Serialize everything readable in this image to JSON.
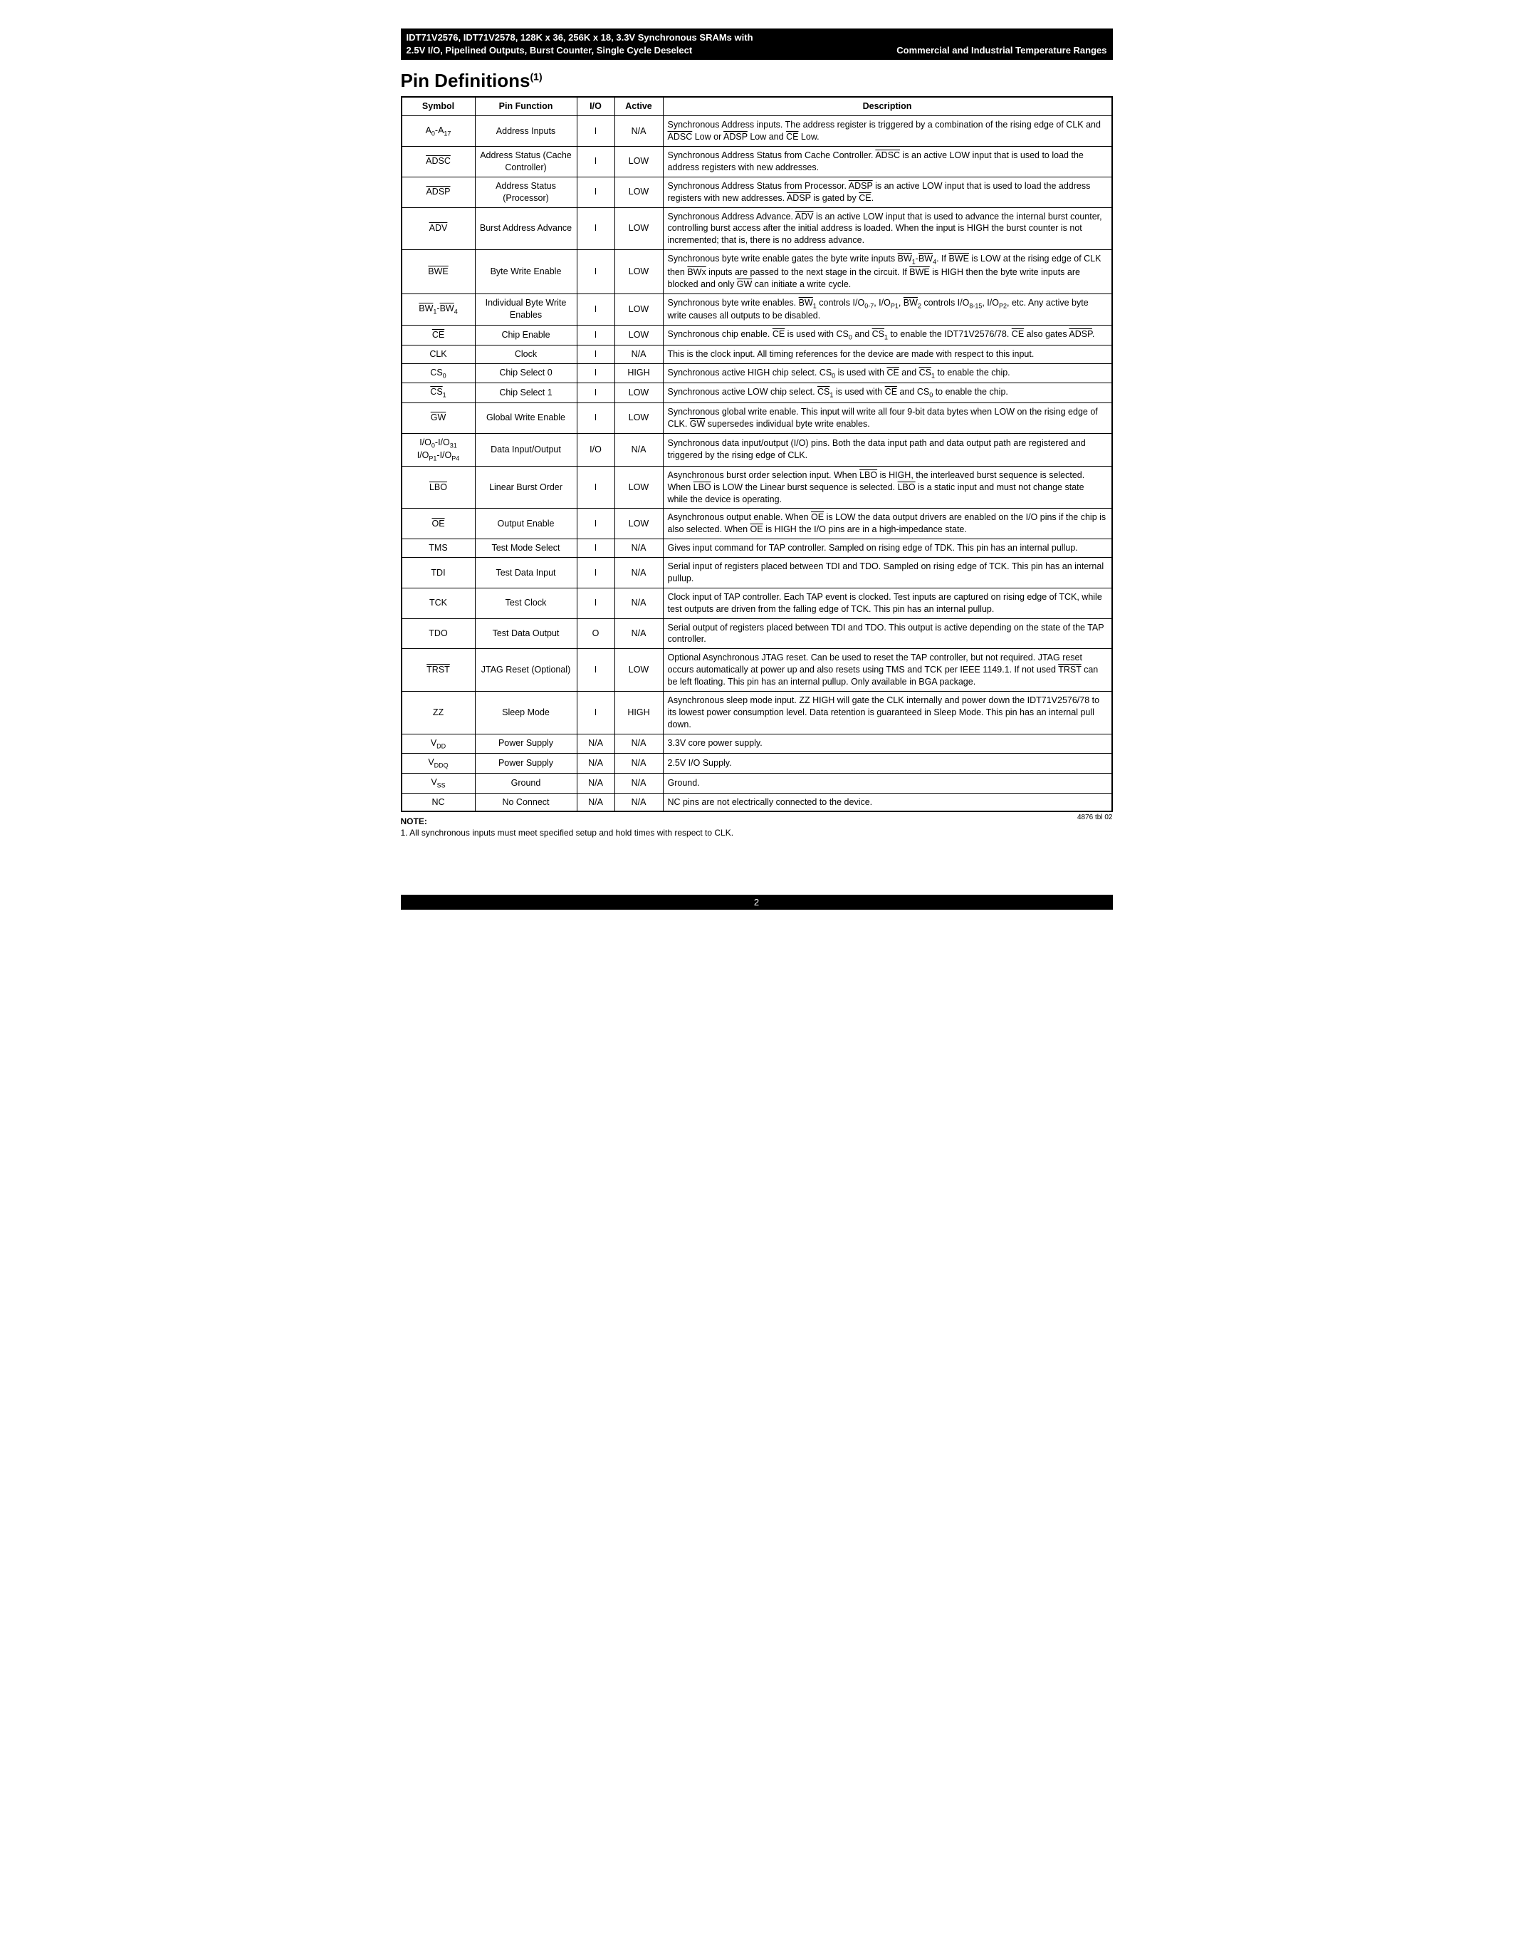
{
  "header": {
    "line1": "IDT71V2576, IDT71V2578, 128K x 36, 256K x 18, 3.3V Synchronous SRAMs with",
    "line2_left": "2.5V I/O, Pipelined Outputs, Burst Counter, Single Cycle Deselect",
    "line2_right": "Commercial and Industrial Temperature Ranges"
  },
  "section_title": "Pin Definitions",
  "section_title_sup": "(1)",
  "columns": [
    "Symbol",
    "Pin Function",
    "I/O",
    "Active",
    "Description"
  ],
  "rows": [
    {
      "sym_html": "A<span class='sub'>0</span>-A<span class='sub'>17</span>",
      "func": "Address Inputs",
      "io": "I",
      "active": "N/A",
      "desc_html": "Synchronous Address inputs. The address register is triggered by a combination of the rising edge of CLK and <span class='ov'>ADSC</span> Low or <span class='ov'>ADSP</span> Low and <span class='ov'>CE</span> Low."
    },
    {
      "sym_html": "<span class='ov'>ADSC</span>",
      "func": "Address Status (Cache Controller)",
      "io": "I",
      "active": "LOW",
      "desc_html": "Synchronous Address Status from Cache Controller. <span class='ov'>ADSC</span> is an active LOW input that is used to load the address registers with new addresses."
    },
    {
      "sym_html": "<span class='ov'>ADSP</span>",
      "func": "Address Status (Processor)",
      "io": "I",
      "active": "LOW",
      "desc_html": "Synchronous Address Status from Processor. <span class='ov'>ADSP</span> is an active LOW input that is used to load the address registers with new addresses. <span class='ov'>ADSP</span> is gated by <span class='ov'>CE</span>."
    },
    {
      "sym_html": "<span class='ov'>ADV</span>",
      "func": "Burst Address Advance",
      "io": "I",
      "active": "LOW",
      "desc_html": "Synchronous Address Advance. <span class='ov'>ADV</span> is an active LOW input that is used to advance the internal burst counter, controlling burst access after the initial address is loaded. When the input is HIGH the burst counter is not incremented; that is, there is no address advance."
    },
    {
      "sym_html": "<span class='ov'>BWE</span>",
      "func": "Byte Write Enable",
      "io": "I",
      "active": "LOW",
      "desc_html": "Synchronous byte write enable gates the byte write inputs <span class='ov'>BW</span><span class='sub'>1</span>-<span class='ov'>BW</span><span class='sub'>4</span>. If <span class='ov'>BWE</span> is LOW at the rising edge of CLK then <span class='ov'>BWx</span> inputs are passed to the next stage in the circuit. If <span class='ov'>BWE</span> is HIGH then the byte write inputs are blocked and only <span class='ov'>GW</span> can initiate a write cycle."
    },
    {
      "sym_html": "<span class='ov'>BW</span><span class='sub'>1</span>-<span class='ov'>BW</span><span class='sub'>4</span>",
      "func": "Individual Byte Write Enables",
      "io": "I",
      "active": "LOW",
      "desc_html": "Synchronous byte write enables. <span class='ov'>BW</span><span class='sub'>1</span> controls I/O<span class='sub'>0-7</span>, I/O<span class='sub'>P1</span>, <span class='ov'>BW</span><span class='sub'>2</span> controls I/O<span class='sub'>8-15</span>, I/O<span class='sub'>P2</span>, etc. Any active byte write causes all outputs to be disabled."
    },
    {
      "sym_html": "<span class='ov'>CE</span>",
      "func": "Chip Enable",
      "io": "I",
      "active": "LOW",
      "desc_html": "Synchronous chip enable. <span class='ov'>CE</span> is used with CS<span class='sub'>0</span> and <span class='ov'>CS</span><span class='sub'>1</span> to enable the IDT71V2576/78. <span class='ov'>CE</span> also gates <span class='ov'>ADSP</span>."
    },
    {
      "sym_html": "CLK",
      "func": "Clock",
      "io": "I",
      "active": "N/A",
      "desc_html": "This is the clock input. All timing references for the device are made with respect to this input."
    },
    {
      "sym_html": "CS<span class='sub'>0</span>",
      "func": "Chip Select 0",
      "io": "I",
      "active": "HIGH",
      "desc_html": "Synchronous active HIGH chip select. CS<span class='sub'>0</span> is used with <span class='ov'>CE</span> and <span class='ov'>CS</span><span class='sub'>1</span> to enable the chip."
    },
    {
      "sym_html": "<span class='ov'>CS</span><span class='sub'>1</span>",
      "func": "Chip Select 1",
      "io": "I",
      "active": "LOW",
      "desc_html": "Synchronous active LOW chip select. <span class='ov'>CS</span><span class='sub'>1</span> is used with <span class='ov'>CE</span> and CS<span class='sub'>0</span> to enable the chip."
    },
    {
      "sym_html": "<span class='ov'>GW</span>",
      "func": "Global Write Enable",
      "io": "I",
      "active": "LOW",
      "desc_html": "Synchronous global write enable. This input will write all four 9-bit data bytes when LOW on the rising edge of CLK. <span class='ov'>GW</span> supersedes individual byte write enables."
    },
    {
      "sym_html": "I/O<span class='sub'>0</span>-I/O<span class='sub'>31</span><br>I/O<span class='sub'>P1</span>-I/O<span class='sub'>P4</span>",
      "func": "Data Input/Output",
      "io": "I/O",
      "active": "N/A",
      "desc_html": "Synchronous data input/output (I/O) pins. Both the data input path and data output path are registered and triggered by the rising edge of CLK."
    },
    {
      "sym_html": "<span class='ov'>LBO</span>",
      "func": "Linear Burst Order",
      "io": "I",
      "active": "LOW",
      "desc_html": "Asynchronous burst order selection input. When <span class='ov'>LBO</span> is HIGH, the interleaved burst sequence is selected. When <span class='ov'>LBO</span> is LOW the Linear burst sequence is selected. <span class='ov'>LBO</span> is a static input and must not change state while the device is operating."
    },
    {
      "sym_html": "<span class='ov'>OE</span>",
      "func": "Output Enable",
      "io": "I",
      "active": "LOW",
      "desc_html": "Asynchronous output enable. When <span class='ov'>OE</span> is LOW the data output drivers are enabled on the I/O pins if the chip is also selected. When <span class='ov'>OE</span> is HIGH the I/O pins are in a high-impedance state."
    },
    {
      "sym_html": "TMS",
      "func": "Test Mode Select",
      "io": "I",
      "active": "N/A",
      "desc_html": "Gives input command for TAP controller. Sampled on rising edge of TDK. This pin has an internal pullup."
    },
    {
      "sym_html": "TDI",
      "func": "Test Data Input",
      "io": "I",
      "active": "N/A",
      "desc_html": "Serial input of registers placed between TDI and TDO. Sampled on rising edge of TCK. This pin has an internal pullup."
    },
    {
      "sym_html": "TCK",
      "func": "Test Clock",
      "io": "I",
      "active": "N/A",
      "desc_html": "Clock input of TAP controller. Each TAP event is clocked. Test inputs are captured on rising edge of TCK, while test outputs are driven from the falling edge of TCK. This pin has an internal pullup."
    },
    {
      "sym_html": "TDO",
      "func": "Test Data Output",
      "io": "O",
      "active": "N/A",
      "desc_html": "Serial output of registers placed between TDI and TDO. This output is active depending on the state of the TAP controller."
    },
    {
      "sym_html": "<span class='ov'>TRST</span>",
      "func": "JTAG Reset (Optional)",
      "io": "I",
      "active": "LOW",
      "desc_html": "Optional Asynchronous JTAG reset. Can be used to reset the TAP controller, but not required. JTAG reset occurs automatically at power up and also resets using TMS and TCK per IEEE 1149.1. If not used <span class='ov'>TRST</span> can be left floating. This pin has an internal pullup. Only available in BGA package."
    },
    {
      "sym_html": "ZZ",
      "func": "Sleep Mode",
      "io": "I",
      "active": "HIGH",
      "desc_html": "Asynchronous sleep mode input. ZZ HIGH will gate the CLK internally and power down the IDT71V2576/78 to its lowest power consumption level. Data retention is guaranteed in Sleep Mode. This pin has an internal pull down."
    },
    {
      "sym_html": "V<span class='sub'>DD</span>",
      "func": "Power Supply",
      "io": "N/A",
      "active": "N/A",
      "desc_html": "3.3V core power supply."
    },
    {
      "sym_html": "V<span class='sub'>DDQ</span>",
      "func": "Power Supply",
      "io": "N/A",
      "active": "N/A",
      "desc_html": "2.5V I/O Supply."
    },
    {
      "sym_html": "V<span class='sub'>SS</span>",
      "func": "Ground",
      "io": "N/A",
      "active": "N/A",
      "desc_html": "Ground."
    },
    {
      "sym_html": "NC",
      "func": "No Connect",
      "io": "N/A",
      "active": "N/A",
      "desc_html": "NC pins are not electrically connected to the device."
    }
  ],
  "note_head": "NOTE:",
  "note_body": "1.  All synchronous inputs must meet specified setup and hold times with respect to CLK.",
  "figref": "4876 tbl 02",
  "page_number": "2"
}
